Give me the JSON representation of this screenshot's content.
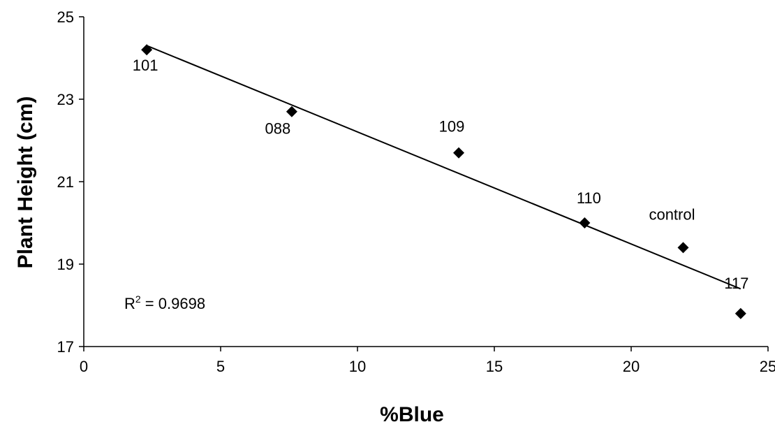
{
  "chart_data": {
    "type": "scatter",
    "title": "",
    "xlabel": "%Blue",
    "ylabel": "Plant Height (cm)",
    "xlim": [
      0,
      25
    ],
    "ylim": [
      17,
      25
    ],
    "xticks": [
      0,
      5,
      10,
      15,
      20,
      25
    ],
    "yticks": [
      17,
      19,
      21,
      23,
      25
    ],
    "xtick_labels": [
      "0",
      "5",
      "10",
      "15",
      "20",
      "25"
    ],
    "ytick_labels": [
      "17",
      "19",
      "21",
      "23",
      "25"
    ],
    "grid": false,
    "legend": false,
    "marker": "diamond",
    "marker_color": "#000000",
    "points": [
      {
        "label": "101",
        "x": 2.3,
        "y": 24.2
      },
      {
        "label": "088",
        "x": 7.6,
        "y": 22.7
      },
      {
        "label": "109",
        "x": 13.7,
        "y": 21.7
      },
      {
        "label": "110",
        "x": 18.3,
        "y": 20.0
      },
      {
        "label": "control",
        "x": 21.9,
        "y": 19.4
      },
      {
        "label": "117",
        "x": 24.0,
        "y": 17.8
      }
    ],
    "trendline": {
      "type": "linear",
      "start": {
        "x": 2.3,
        "y": 24.3
      },
      "end": {
        "x": 24.0,
        "y": 18.4
      },
      "r2_text": "R",
      "r2_sup": "2",
      "r2_value": " = 0.9698"
    }
  }
}
